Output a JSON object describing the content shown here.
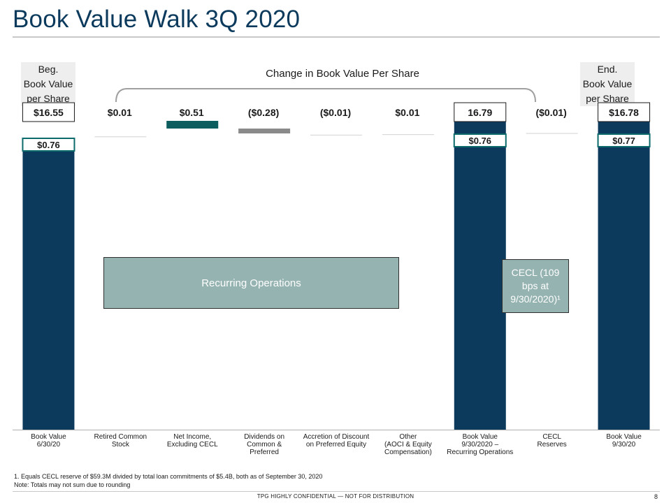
{
  "page": {
    "title": "Book Value Walk 3Q 2020",
    "confidential": "TPG HIGHLY CONFIDENTIAL — NOT FOR DISTRIBUTION",
    "page_number": "8",
    "footnotes": [
      "1. Equals CECL reserve of $59.3M divided by total loan commitments of $5.4B, both as of September 30, 2020",
      "Note: Totals may not sum due to rounding"
    ]
  },
  "headers": {
    "beginning": [
      "Beg.",
      "Book Value",
      "per Share"
    ],
    "change": "Change in Book Value Per Share",
    "ending": [
      "End.",
      "Book Value",
      "per Share"
    ]
  },
  "overlays": {
    "recurring": "Recurring Operations",
    "cecl": "CECL (109 bps at 9/30/2020)¹"
  },
  "colors": {
    "total_bar": "#0b3a5c",
    "increase_bar": "#0c5d5e",
    "decrease_bar": "#8a8a8a",
    "highlight_border": "#0c6b6b",
    "overlay_fill": "#95b3b1",
    "title": "#0b3a5c"
  },
  "chart_data": {
    "type": "bar",
    "subtype": "waterfall",
    "categories": [
      "Book Value\n6/30/20",
      "Retired Common\nStock",
      "Net Income,\nExcluding CECL",
      "Dividends on\nCommon &\nPreferred",
      "Accretion of Discount\non Preferred Equity",
      "Other\n(AOCI & Equity\nCompensation)",
      "Book Value\n9/30/2020 –\nRecurring Operations",
      "CECL\nReserves",
      "Book Value\n9/30/20"
    ],
    "values": [
      16.55,
      0.01,
      0.51,
      -0.28,
      -0.01,
      0.01,
      16.79,
      -0.01,
      16.78
    ],
    "kinds": [
      "total",
      "delta",
      "delta",
      "delta",
      "delta",
      "delta",
      "total",
      "delta",
      "total"
    ],
    "value_labels": [
      "$16.55",
      "$0.01",
      "$0.51",
      "($0.28)",
      "($0.01)",
      "$0.01",
      "16.79",
      "($0.01)",
      "$16.78"
    ],
    "boxed_labels": [
      true,
      false,
      false,
      false,
      false,
      false,
      true,
      false,
      true
    ],
    "secondary_labels": [
      "$0.76",
      null,
      null,
      null,
      null,
      null,
      "$0.76",
      null,
      "$0.77"
    ]
  }
}
